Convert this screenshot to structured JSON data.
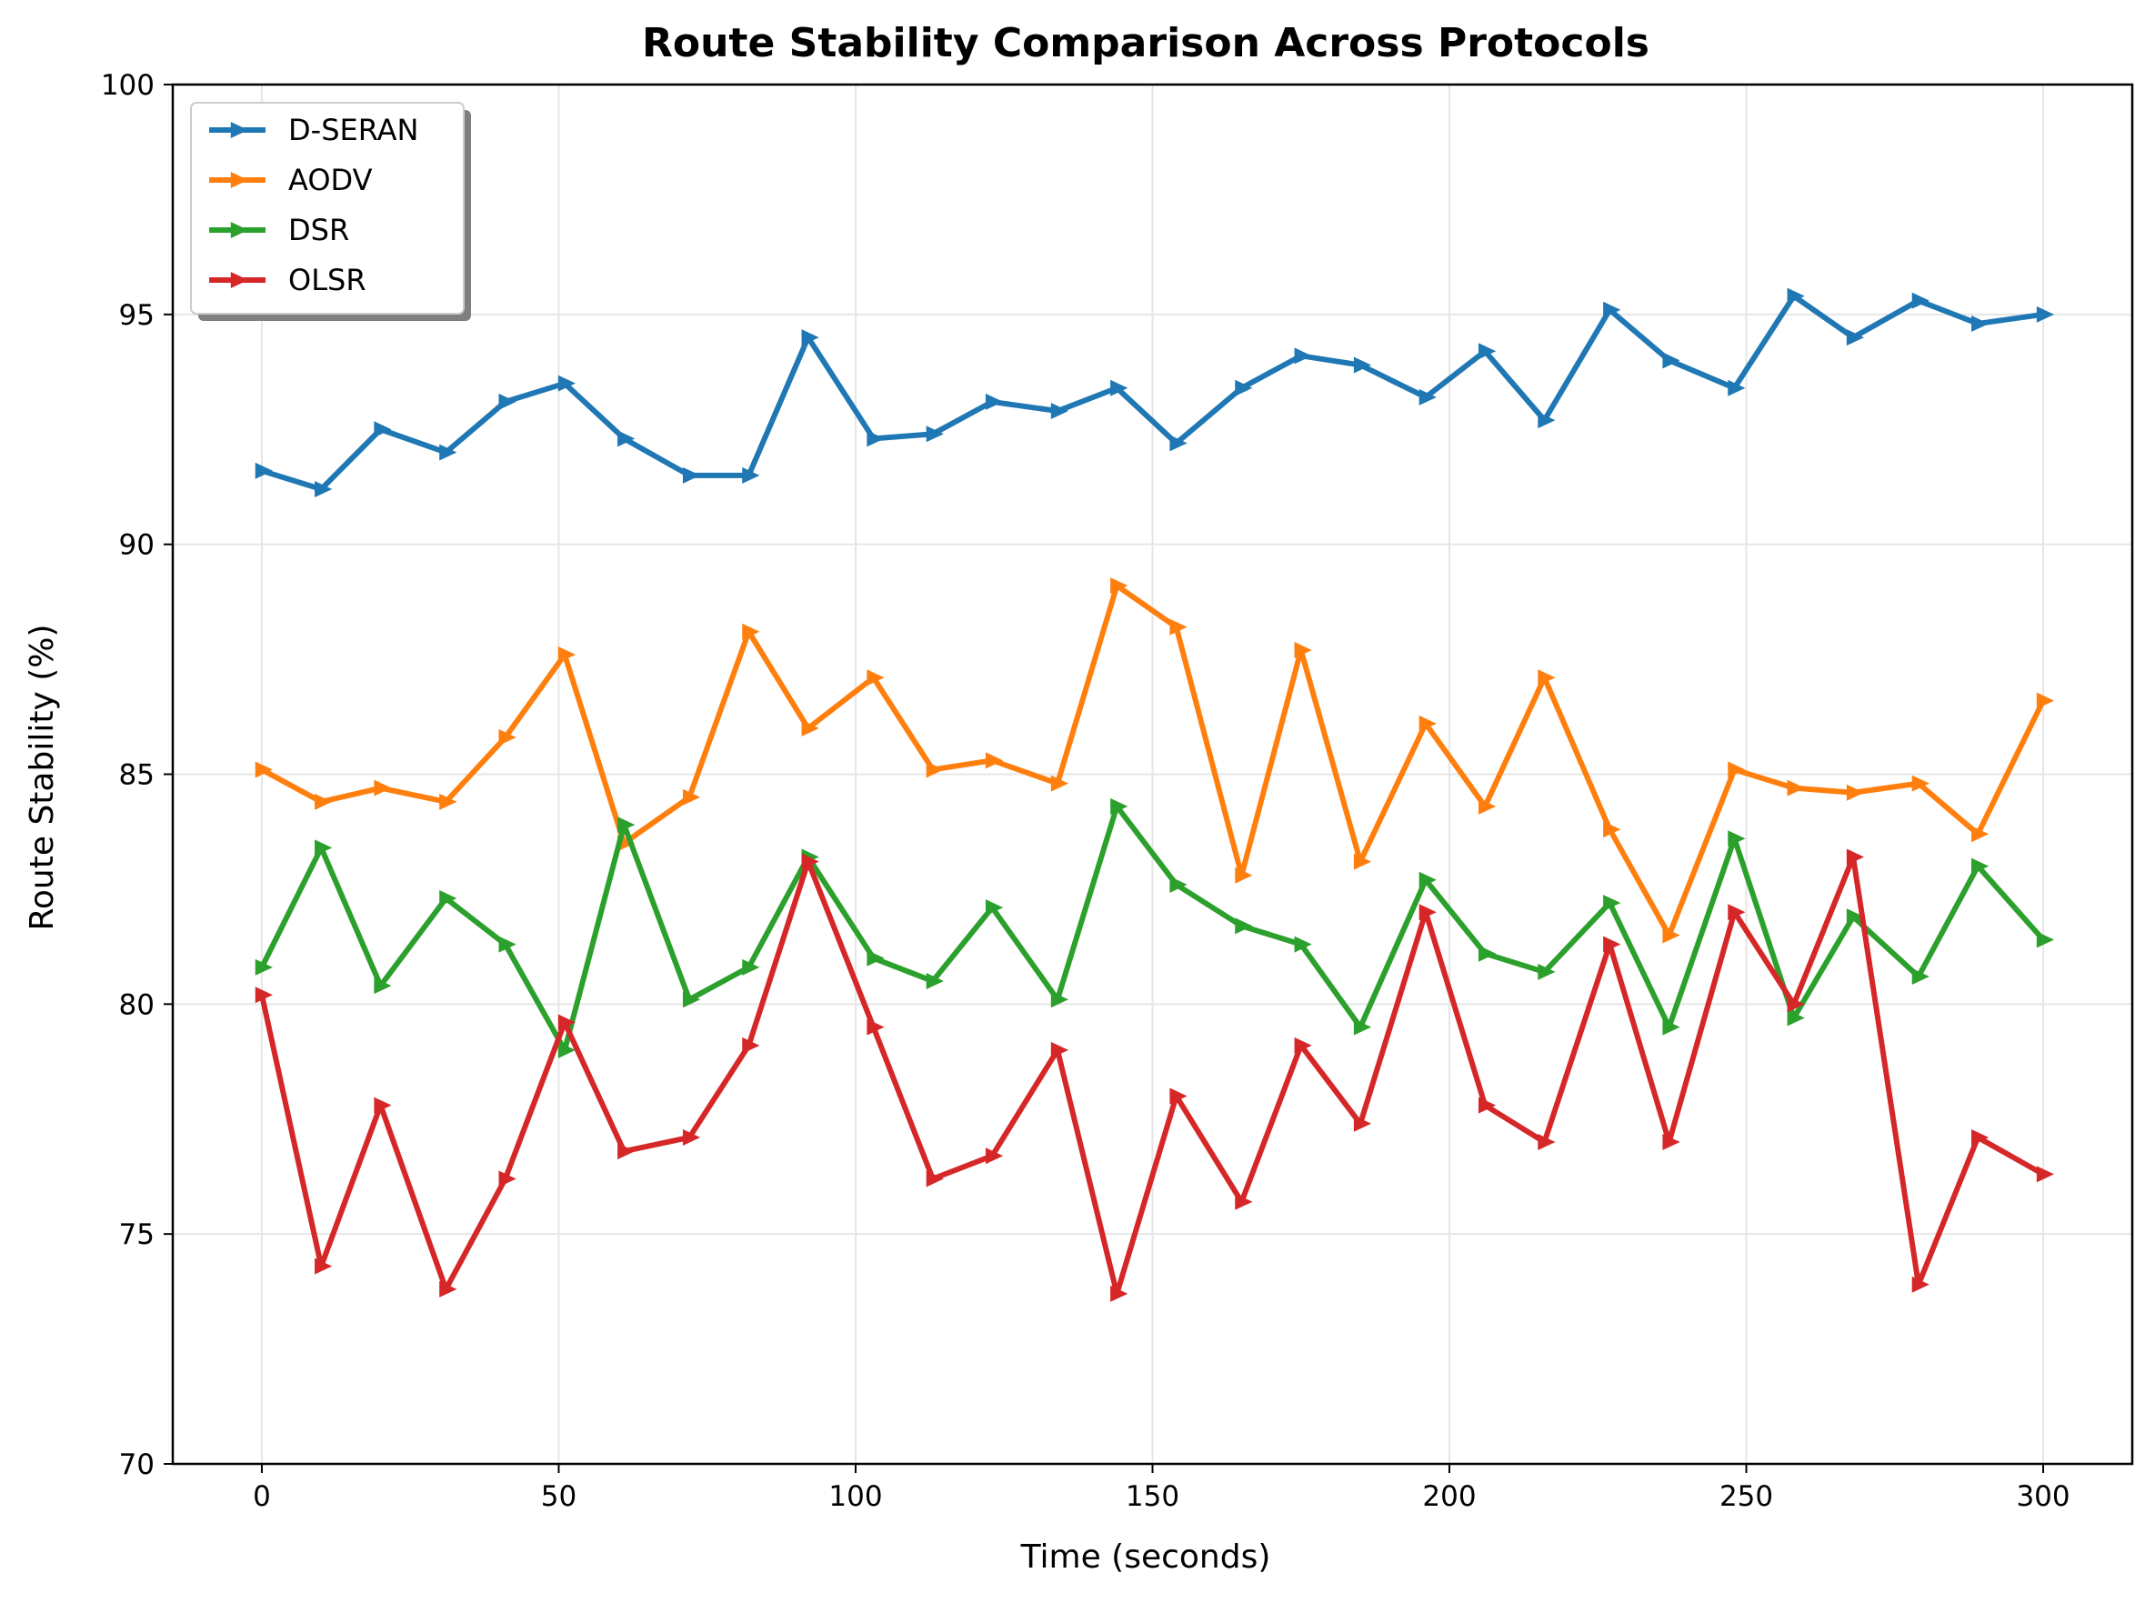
{
  "chart_data": {
    "type": "line",
    "title": "Route Stability Comparison Across Protocols",
    "xlabel": "Time (seconds)",
    "ylabel": "Route Stability (%)",
    "xlim": [
      -15,
      315
    ],
    "ylim": [
      70,
      100
    ],
    "xticks": [
      0,
      50,
      100,
      150,
      200,
      250,
      300
    ],
    "yticks": [
      70,
      75,
      80,
      85,
      90,
      95,
      100
    ],
    "grid": true,
    "legend_position": "top-left",
    "marker": "triangle-right",
    "x": [
      0,
      10,
      20,
      31,
      41,
      51,
      61,
      72,
      82,
      92,
      103,
      113,
      123,
      134,
      144,
      154,
      165,
      175,
      185,
      196,
      206,
      216,
      227,
      237,
      248,
      258,
      268,
      279,
      289,
      300
    ],
    "series": [
      {
        "name": "D-SERAN",
        "color": "#1f77b4",
        "values": [
          91.6,
          91.2,
          92.5,
          92.0,
          93.1,
          93.5,
          92.3,
          91.5,
          91.5,
          94.5,
          92.3,
          92.4,
          93.1,
          92.9,
          93.4,
          92.2,
          93.4,
          94.1,
          93.9,
          93.2,
          94.2,
          92.7,
          95.1,
          94.0,
          93.4,
          95.4,
          94.5,
          95.3,
          94.8,
          95.0
        ]
      },
      {
        "name": "AODV",
        "color": "#ff7f0e",
        "values": [
          85.1,
          84.4,
          84.7,
          84.4,
          85.8,
          87.6,
          83.5,
          84.5,
          88.1,
          86.0,
          87.1,
          85.1,
          85.3,
          84.8,
          89.1,
          88.2,
          82.8,
          87.7,
          83.1,
          86.1,
          84.3,
          87.1,
          83.8,
          81.5,
          85.1,
          84.7,
          84.6,
          84.8,
          83.7,
          86.6
        ]
      },
      {
        "name": "DSR",
        "color": "#2ca02c",
        "values": [
          80.8,
          83.4,
          80.4,
          82.3,
          81.3,
          79.0,
          83.9,
          80.1,
          80.8,
          83.2,
          81.0,
          80.5,
          82.1,
          80.1,
          84.3,
          82.6,
          81.7,
          81.3,
          79.5,
          82.7,
          81.1,
          80.7,
          82.2,
          79.5,
          83.6,
          79.7,
          81.9,
          80.6,
          83.0,
          81.4
        ]
      },
      {
        "name": "OLSR",
        "color": "#d62728",
        "values": [
          80.2,
          74.3,
          77.8,
          73.8,
          76.2,
          79.6,
          76.8,
          77.1,
          79.1,
          83.1,
          79.5,
          76.2,
          76.7,
          79.0,
          73.7,
          78.0,
          75.7,
          79.1,
          77.4,
          82.0,
          77.8,
          77.0,
          81.3,
          77.0,
          82.0,
          80.0,
          83.2,
          73.9,
          77.1,
          76.3
        ]
      }
    ]
  }
}
